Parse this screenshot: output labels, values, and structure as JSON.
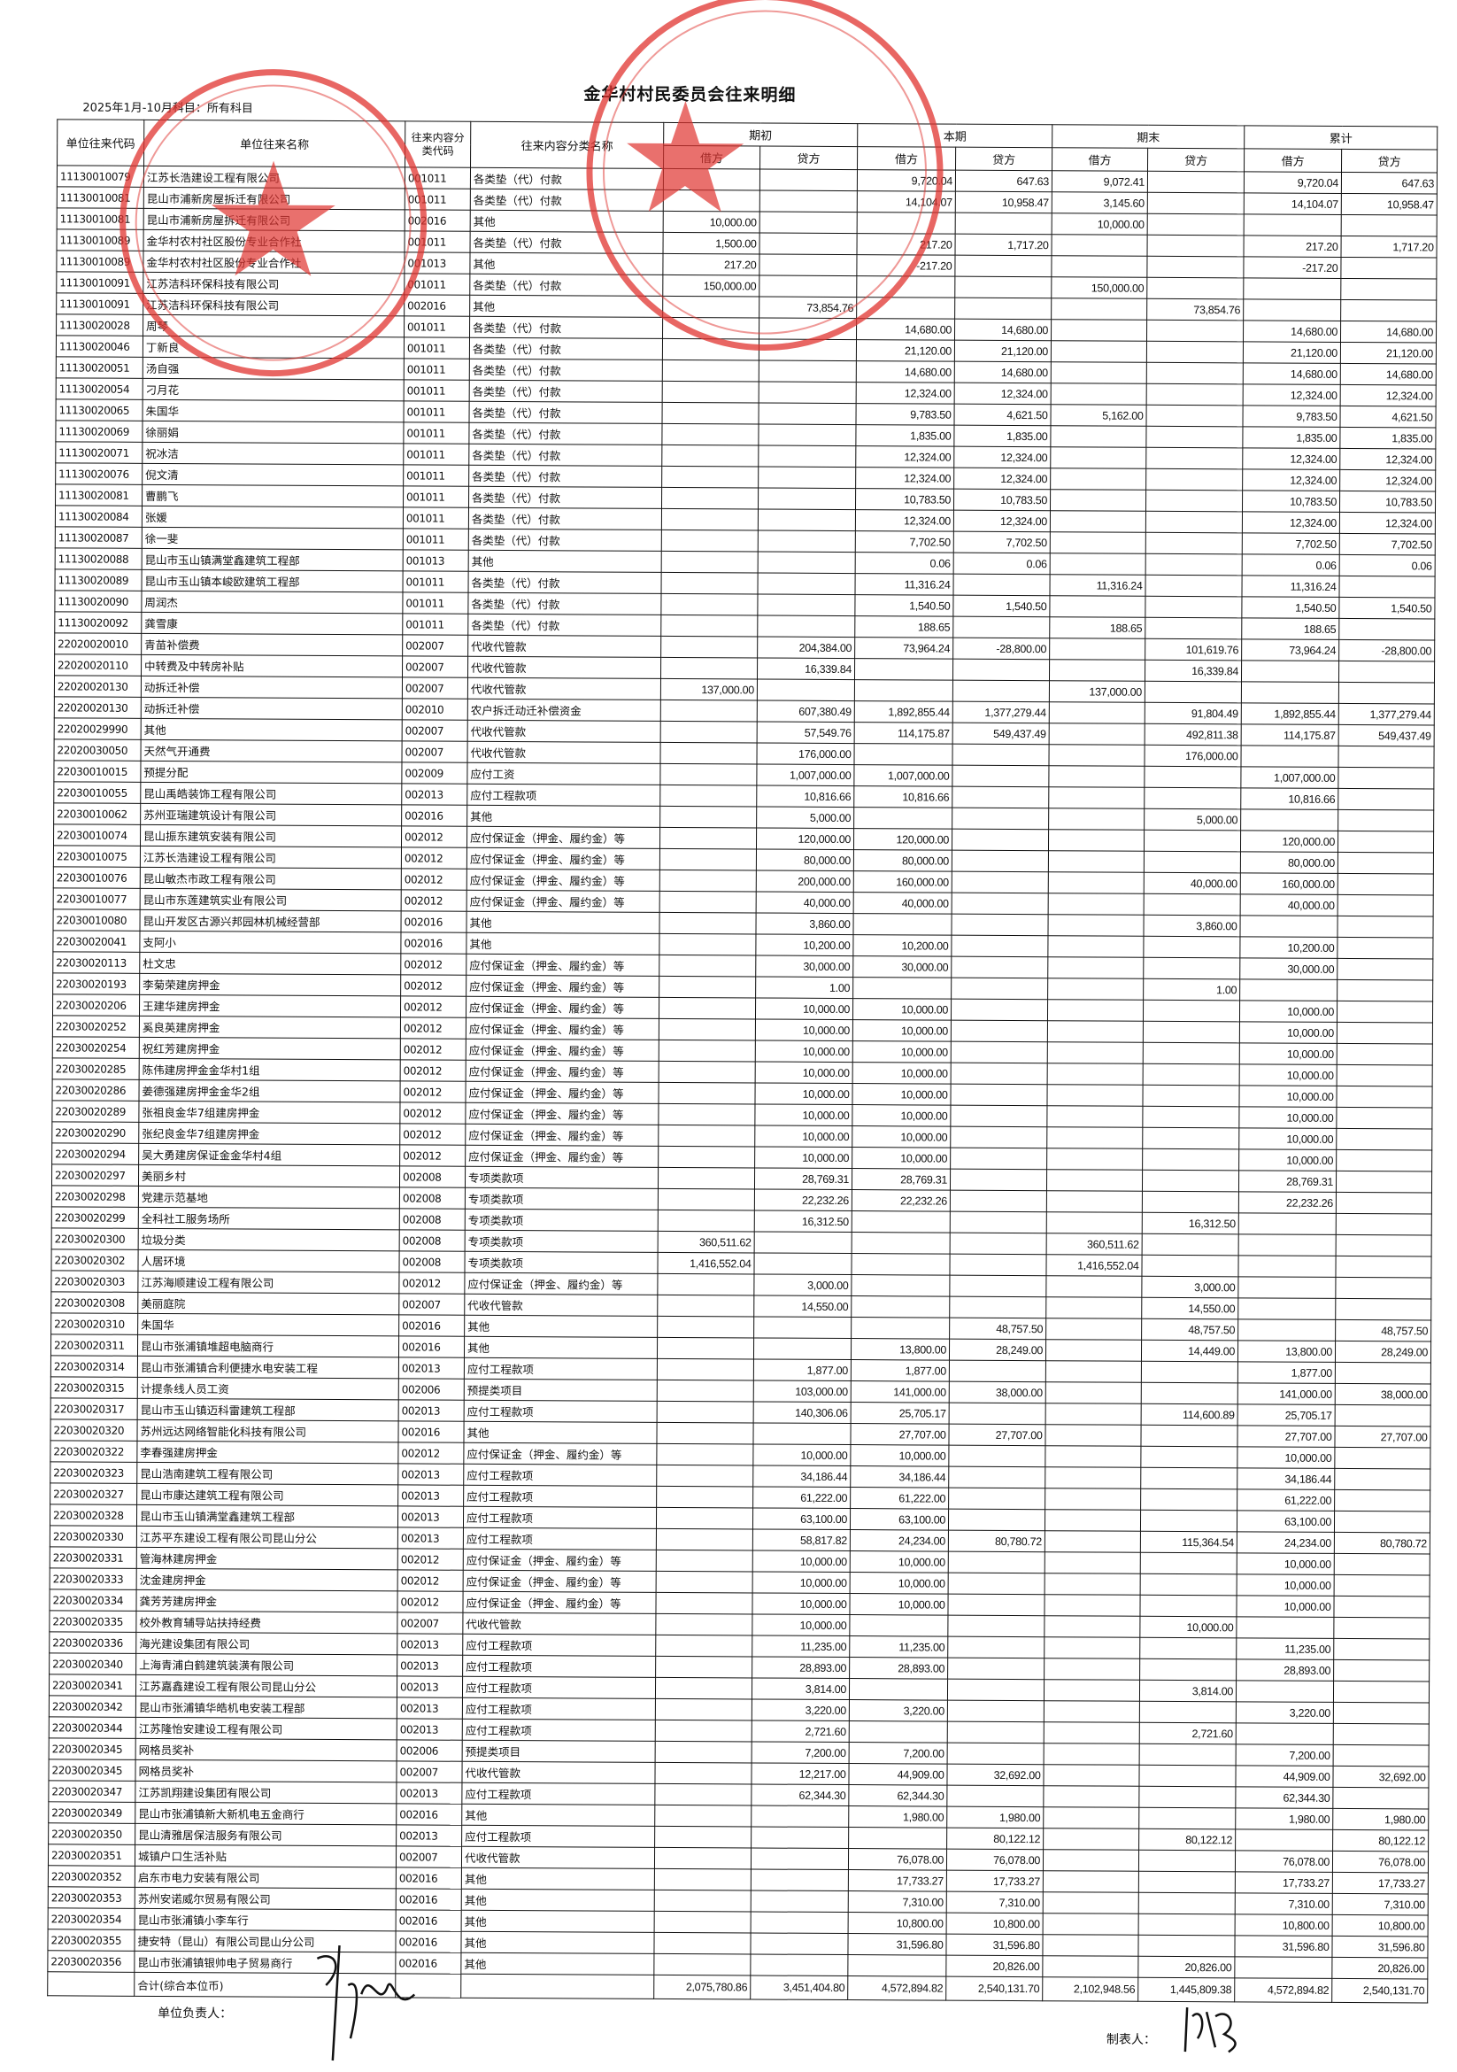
{
  "document": {
    "title": "金华村村民委员会往来明细",
    "period_line": "2025年1月-10月科目：所有科目",
    "stamp_color": "#e0332f"
  },
  "table": {
    "headers": {
      "code": "单位往来代码",
      "name": "单位往来名称",
      "class_code": "往来内容分类代码",
      "class_name": "往来内容分类名称",
      "groups": [
        "期初",
        "本期",
        "期末",
        "累计"
      ],
      "debit": "借方",
      "credit": "贷方"
    },
    "rows": [
      [
        "11130010079",
        "江苏长浩建设工程有限公司",
        "001011",
        "各类垫（代）付款",
        "",
        "",
        "9,720.04",
        "647.63",
        "9,072.41",
        "",
        "9,720.04",
        "647.63"
      ],
      [
        "11130010081",
        "昆山市浦新房屋拆迁有限公司",
        "001011",
        "各类垫（代）付款",
        "",
        "",
        "14,104.07",
        "10,958.47",
        "3,145.60",
        "",
        "14,104.07",
        "10,958.47"
      ],
      [
        "11130010081",
        "昆山市浦新房屋拆迁有限公司",
        "002016",
        "其他",
        "10,000.00",
        "",
        "",
        "",
        "10,000.00",
        "",
        "",
        ""
      ],
      [
        "11130010089",
        "金华村农村社区股份专业合作社",
        "001011",
        "各类垫（代）付款",
        "1,500.00",
        "",
        "217.20",
        "1,717.20",
        "",
        "",
        "217.20",
        "1,717.20"
      ],
      [
        "11130010089",
        "金华村农村社区股份专业合作社",
        "001013",
        "其他",
        "217.20",
        "",
        "-217.20",
        "",
        "",
        "",
        "-217.20",
        ""
      ],
      [
        "11130010091",
        "江苏洁科环保科技有限公司",
        "001011",
        "各类垫（代）付款",
        "150,000.00",
        "",
        "",
        "",
        "150,000.00",
        "",
        "",
        ""
      ],
      [
        "11130010091",
        "江苏洁科环保科技有限公司",
        "002016",
        "其他",
        "",
        "73,854.76",
        "",
        "",
        "",
        "73,854.76",
        "",
        ""
      ],
      [
        "11130020028",
        "周琴",
        "001011",
        "各类垫（代）付款",
        "",
        "",
        "14,680.00",
        "14,680.00",
        "",
        "",
        "14,680.00",
        "14,680.00"
      ],
      [
        "11130020046",
        "丁新良",
        "001011",
        "各类垫（代）付款",
        "",
        "",
        "21,120.00",
        "21,120.00",
        "",
        "",
        "21,120.00",
        "21,120.00"
      ],
      [
        "11130020051",
        "汤自强",
        "001011",
        "各类垫（代）付款",
        "",
        "",
        "14,680.00",
        "14,680.00",
        "",
        "",
        "14,680.00",
        "14,680.00"
      ],
      [
        "11130020054",
        "刁月花",
        "001011",
        "各类垫（代）付款",
        "",
        "",
        "12,324.00",
        "12,324.00",
        "",
        "",
        "12,324.00",
        "12,324.00"
      ],
      [
        "11130020065",
        "朱国华",
        "001011",
        "各类垫（代）付款",
        "",
        "",
        "9,783.50",
        "4,621.50",
        "5,162.00",
        "",
        "9,783.50",
        "4,621.50"
      ],
      [
        "11130020069",
        "徐丽娟",
        "001011",
        "各类垫（代）付款",
        "",
        "",
        "1,835.00",
        "1,835.00",
        "",
        "",
        "1,835.00",
        "1,835.00"
      ],
      [
        "11130020071",
        "祝冰洁",
        "001011",
        "各类垫（代）付款",
        "",
        "",
        "12,324.00",
        "12,324.00",
        "",
        "",
        "12,324.00",
        "12,324.00"
      ],
      [
        "11130020076",
        "倪文清",
        "001011",
        "各类垫（代）付款",
        "",
        "",
        "12,324.00",
        "12,324.00",
        "",
        "",
        "12,324.00",
        "12,324.00"
      ],
      [
        "11130020081",
        "曹鹏飞",
        "001011",
        "各类垫（代）付款",
        "",
        "",
        "10,783.50",
        "10,783.50",
        "",
        "",
        "10,783.50",
        "10,783.50"
      ],
      [
        "11130020084",
        "张媛",
        "001011",
        "各类垫（代）付款",
        "",
        "",
        "12,324.00",
        "12,324.00",
        "",
        "",
        "12,324.00",
        "12,324.00"
      ],
      [
        "11130020087",
        "徐一斐",
        "001011",
        "各类垫（代）付款",
        "",
        "",
        "7,702.50",
        "7,702.50",
        "",
        "",
        "7,702.50",
        "7,702.50"
      ],
      [
        "11130020088",
        "昆山市玉山镇满堂鑫建筑工程部",
        "001013",
        "其他",
        "",
        "",
        "0.06",
        "0.06",
        "",
        "",
        "0.06",
        "0.06"
      ],
      [
        "11130020089",
        "昆山市玉山镇本峻欧建筑工程部",
        "001011",
        "各类垫（代）付款",
        "",
        "",
        "11,316.24",
        "",
        "11,316.24",
        "",
        "11,316.24",
        ""
      ],
      [
        "11130020090",
        "周润杰",
        "001011",
        "各类垫（代）付款",
        "",
        "",
        "1,540.50",
        "1,540.50",
        "",
        "",
        "1,540.50",
        "1,540.50"
      ],
      [
        "11130020092",
        "龚雪康",
        "001011",
        "各类垫（代）付款",
        "",
        "",
        "188.65",
        "",
        "188.65",
        "",
        "188.65",
        ""
      ],
      [
        "22020020010",
        "青苗补偿费",
        "002007",
        "代收代管款",
        "",
        "204,384.00",
        "73,964.24",
        "-28,800.00",
        "",
        "101,619.76",
        "73,964.24",
        "-28,800.00"
      ],
      [
        "22020020110",
        "中转费及中转房补贴",
        "002007",
        "代收代管款",
        "",
        "16,339.84",
        "",
        "",
        "",
        "16,339.84",
        "",
        ""
      ],
      [
        "22020020130",
        "动拆迁补偿",
        "002007",
        "代收代管款",
        "137,000.00",
        "",
        "",
        "",
        "137,000.00",
        "",
        "",
        ""
      ],
      [
        "22020020130",
        "动拆迁补偿",
        "002010",
        "农户拆迁动迁补偿资金",
        "",
        "607,380.49",
        "1,892,855.44",
        "1,377,279.44",
        "",
        "91,804.49",
        "1,892,855.44",
        "1,377,279.44"
      ],
      [
        "22020029990",
        "其他",
        "002007",
        "代收代管款",
        "",
        "57,549.76",
        "114,175.87",
        "549,437.49",
        "",
        "492,811.38",
        "114,175.87",
        "549,437.49"
      ],
      [
        "22020030050",
        "天然气开通费",
        "002007",
        "代收代管款",
        "",
        "176,000.00",
        "",
        "",
        "",
        "176,000.00",
        "",
        ""
      ],
      [
        "22030010015",
        "预提分配",
        "002009",
        "应付工资",
        "",
        "1,007,000.00",
        "1,007,000.00",
        "",
        "",
        "",
        "1,007,000.00",
        ""
      ],
      [
        "22030010055",
        "昆山禹皓装饰工程有限公司",
        "002013",
        "应付工程款项",
        "",
        "10,816.66",
        "10,816.66",
        "",
        "",
        "",
        "10,816.66",
        ""
      ],
      [
        "22030010062",
        "苏州亚瑞建筑设计有限公司",
        "002016",
        "其他",
        "",
        "5,000.00",
        "",
        "",
        "",
        "5,000.00",
        "",
        ""
      ],
      [
        "22030010074",
        "昆山振东建筑安装有限公司",
        "002012",
        "应付保证金（押金、履约金）等",
        "",
        "120,000.00",
        "120,000.00",
        "",
        "",
        "",
        "120,000.00",
        ""
      ],
      [
        "22030010075",
        "江苏长浩建设工程有限公司",
        "002012",
        "应付保证金（押金、履约金）等",
        "",
        "80,000.00",
        "80,000.00",
        "",
        "",
        "",
        "80,000.00",
        ""
      ],
      [
        "22030010076",
        "昆山敏杰市政工程有限公司",
        "002012",
        "应付保证金（押金、履约金）等",
        "",
        "200,000.00",
        "160,000.00",
        "",
        "",
        "40,000.00",
        "160,000.00",
        ""
      ],
      [
        "22030010077",
        "昆山市东莲建筑实业有限公司",
        "002012",
        "应付保证金（押金、履约金）等",
        "",
        "40,000.00",
        "40,000.00",
        "",
        "",
        "",
        "40,000.00",
        ""
      ],
      [
        "22030010080",
        "昆山开发区古源兴邦园林机械经营部",
        "002016",
        "其他",
        "",
        "3,860.00",
        "",
        "",
        "",
        "3,860.00",
        "",
        ""
      ],
      [
        "22030020041",
        "支阿小",
        "002016",
        "其他",
        "",
        "10,200.00",
        "10,200.00",
        "",
        "",
        "",
        "10,200.00",
        ""
      ],
      [
        "22030020113",
        "杜文忠",
        "002012",
        "应付保证金（押金、履约金）等",
        "",
        "30,000.00",
        "30,000.00",
        "",
        "",
        "",
        "30,000.00",
        ""
      ],
      [
        "22030020193",
        "李菊荣建房押金",
        "002012",
        "应付保证金（押金、履约金）等",
        "",
        "1.00",
        "",
        "",
        "",
        "1.00",
        "",
        ""
      ],
      [
        "22030020206",
        "王建华建房押金",
        "002012",
        "应付保证金（押金、履约金）等",
        "",
        "10,000.00",
        "10,000.00",
        "",
        "",
        "",
        "10,000.00",
        ""
      ],
      [
        "22030020252",
        "奚良英建房押金",
        "002012",
        "应付保证金（押金、履约金）等",
        "",
        "10,000.00",
        "10,000.00",
        "",
        "",
        "",
        "10,000.00",
        ""
      ],
      [
        "22030020254",
        "祝红芳建房押金",
        "002012",
        "应付保证金（押金、履约金）等",
        "",
        "10,000.00",
        "10,000.00",
        "",
        "",
        "",
        "10,000.00",
        ""
      ],
      [
        "22030020285",
        "陈伟建房押金金华村1组",
        "002012",
        "应付保证金（押金、履约金）等",
        "",
        "10,000.00",
        "10,000.00",
        "",
        "",
        "",
        "10,000.00",
        ""
      ],
      [
        "22030020286",
        "姜德强建房押金金华2组",
        "002012",
        "应付保证金（押金、履约金）等",
        "",
        "10,000.00",
        "10,000.00",
        "",
        "",
        "",
        "10,000.00",
        ""
      ],
      [
        "22030020289",
        "张祖良金华7组建房押金",
        "002012",
        "应付保证金（押金、履约金）等",
        "",
        "10,000.00",
        "10,000.00",
        "",
        "",
        "",
        "10,000.00",
        ""
      ],
      [
        "22030020290",
        "张纪良金华7组建房押金",
        "002012",
        "应付保证金（押金、履约金）等",
        "",
        "10,000.00",
        "10,000.00",
        "",
        "",
        "",
        "10,000.00",
        ""
      ],
      [
        "22030020294",
        "吴大勇建房保证金金华村4组",
        "002012",
        "应付保证金（押金、履约金）等",
        "",
        "10,000.00",
        "10,000.00",
        "",
        "",
        "",
        "10,000.00",
        ""
      ],
      [
        "22030020297",
        "美丽乡村",
        "002008",
        "专项类款项",
        "",
        "28,769.31",
        "28,769.31",
        "",
        "",
        "",
        "28,769.31",
        ""
      ],
      [
        "22030020298",
        "党建示范基地",
        "002008",
        "专项类款项",
        "",
        "22,232.26",
        "22,232.26",
        "",
        "",
        "",
        "22,232.26",
        ""
      ],
      [
        "22030020299",
        "全科社工服务场所",
        "002008",
        "专项类款项",
        "",
        "16,312.50",
        "",
        "",
        "",
        "16,312.50",
        "",
        ""
      ],
      [
        "22030020300",
        "垃圾分类",
        "002008",
        "专项类款项",
        "360,511.62",
        "",
        "",
        "",
        "360,511.62",
        "",
        "",
        ""
      ],
      [
        "22030020302",
        "人居环境",
        "002008",
        "专项类款项",
        "1,416,552.04",
        "",
        "",
        "",
        "1,416,552.04",
        "",
        "",
        ""
      ],
      [
        "22030020303",
        "江苏海顺建设工程有限公司",
        "002012",
        "应付保证金（押金、履约金）等",
        "",
        "3,000.00",
        "",
        "",
        "",
        "3,000.00",
        "",
        ""
      ],
      [
        "22030020308",
        "美丽庭院",
        "002007",
        "代收代管款",
        "",
        "14,550.00",
        "",
        "",
        "",
        "14,550.00",
        "",
        ""
      ],
      [
        "22030020310",
        "朱国华",
        "002016",
        "其他",
        "",
        "",
        "",
        "48,757.50",
        "",
        "48,757.50",
        "",
        "48,757.50"
      ],
      [
        "22030020311",
        "昆山市张浦镇堆超电脑商行",
        "002016",
        "其他",
        "",
        "",
        "13,800.00",
        "28,249.00",
        "",
        "14,449.00",
        "13,800.00",
        "28,249.00"
      ],
      [
        "22030020314",
        "昆山市张浦镇合利便捷水电安装工程",
        "002013",
        "应付工程款项",
        "",
        "1,877.00",
        "1,877.00",
        "",
        "",
        "",
        "1,877.00",
        ""
      ],
      [
        "22030020315",
        "计提条线人员工资",
        "002006",
        "预提类项目",
        "",
        "103,000.00",
        "141,000.00",
        "38,000.00",
        "",
        "",
        "141,000.00",
        "38,000.00"
      ],
      [
        "22030020317",
        "昆山市玉山镇迈科雷建筑工程部",
        "002013",
        "应付工程款项",
        "",
        "140,306.06",
        "25,705.17",
        "",
        "",
        "114,600.89",
        "25,705.17",
        ""
      ],
      [
        "22030020320",
        "苏州远达网络智能化科技有限公司",
        "002016",
        "其他",
        "",
        "",
        "27,707.00",
        "27,707.00",
        "",
        "",
        "27,707.00",
        "27,707.00"
      ],
      [
        "22030020322",
        "李春强建房押金",
        "002012",
        "应付保证金（押金、履约金）等",
        "",
        "10,000.00",
        "10,000.00",
        "",
        "",
        "",
        "10,000.00",
        ""
      ],
      [
        "22030020323",
        "昆山浩南建筑工程有限公司",
        "002013",
        "应付工程款项",
        "",
        "34,186.44",
        "34,186.44",
        "",
        "",
        "",
        "34,186.44",
        ""
      ],
      [
        "22030020327",
        "昆山市康达建筑工程有限公司",
        "002013",
        "应付工程款项",
        "",
        "61,222.00",
        "61,222.00",
        "",
        "",
        "",
        "61,222.00",
        ""
      ],
      [
        "22030020328",
        "昆山市玉山镇满堂鑫建筑工程部",
        "002013",
        "应付工程款项",
        "",
        "63,100.00",
        "63,100.00",
        "",
        "",
        "",
        "63,100.00",
        ""
      ],
      [
        "22030020330",
        "江苏平东建设工程有限公司昆山分公",
        "002013",
        "应付工程款项",
        "",
        "58,817.82",
        "24,234.00",
        "80,780.72",
        "",
        "115,364.54",
        "24,234.00",
        "80,780.72"
      ],
      [
        "22030020331",
        "管海林建房押金",
        "002012",
        "应付保证金（押金、履约金）等",
        "",
        "10,000.00",
        "10,000.00",
        "",
        "",
        "",
        "10,000.00",
        ""
      ],
      [
        "22030020333",
        "沈金建房押金",
        "002012",
        "应付保证金（押金、履约金）等",
        "",
        "10,000.00",
        "10,000.00",
        "",
        "",
        "",
        "10,000.00",
        ""
      ],
      [
        "22030020334",
        "龚芳芳建房押金",
        "002012",
        "应付保证金（押金、履约金）等",
        "",
        "10,000.00",
        "10,000.00",
        "",
        "",
        "",
        "10,000.00",
        ""
      ],
      [
        "22030020335",
        "校外教育辅导站扶持经费",
        "002007",
        "代收代管款",
        "",
        "10,000.00",
        "",
        "",
        "",
        "10,000.00",
        "",
        ""
      ],
      [
        "22030020336",
        "海光建设集团有限公司",
        "002013",
        "应付工程款项",
        "",
        "11,235.00",
        "11,235.00",
        "",
        "",
        "",
        "11,235.00",
        ""
      ],
      [
        "22030020340",
        "上海青浦白鹤建筑装潢有限公司",
        "002013",
        "应付工程款项",
        "",
        "28,893.00",
        "28,893.00",
        "",
        "",
        "",
        "28,893.00",
        ""
      ],
      [
        "22030020341",
        "江苏嘉鑫建设工程有限公司昆山分公",
        "002013",
        "应付工程款项",
        "",
        "3,814.00",
        "",
        "",
        "",
        "3,814.00",
        "",
        ""
      ],
      [
        "22030020342",
        "昆山市张浦镇华皓机电安装工程部",
        "002013",
        "应付工程款项",
        "",
        "3,220.00",
        "3,220.00",
        "",
        "",
        "",
        "3,220.00",
        ""
      ],
      [
        "22030020344",
        "江苏隆怡安建设工程有限公司",
        "002013",
        "应付工程款项",
        "",
        "2,721.60",
        "",
        "",
        "",
        "2,721.60",
        "",
        ""
      ],
      [
        "22030020345",
        "网格员奖补",
        "002006",
        "预提类项目",
        "",
        "7,200.00",
        "7,200.00",
        "",
        "",
        "",
        "7,200.00",
        ""
      ],
      [
        "22030020345",
        "网格员奖补",
        "002007",
        "代收代管款",
        "",
        "12,217.00",
        "44,909.00",
        "32,692.00",
        "",
        "",
        "44,909.00",
        "32,692.00"
      ],
      [
        "22030020347",
        "江苏凯翔建设集团有限公司",
        "002013",
        "应付工程款项",
        "",
        "62,344.30",
        "62,344.30",
        "",
        "",
        "",
        "62,344.30",
        ""
      ],
      [
        "22030020349",
        "昆山市张浦镇新大新机电五金商行",
        "002016",
        "其他",
        "",
        "",
        "1,980.00",
        "1,980.00",
        "",
        "",
        "1,980.00",
        "1,980.00"
      ],
      [
        "22030020350",
        "昆山清雅居保洁服务有限公司",
        "002013",
        "应付工程款项",
        "",
        "",
        "",
        "80,122.12",
        "",
        "80,122.12",
        "",
        "80,122.12"
      ],
      [
        "22030020351",
        "城镇户口生活补贴",
        "002007",
        "代收代管款",
        "",
        "",
        "76,078.00",
        "76,078.00",
        "",
        "",
        "76,078.00",
        "76,078.00"
      ],
      [
        "22030020352",
        "启东市电力安装有限公司",
        "002016",
        "其他",
        "",
        "",
        "17,733.27",
        "17,733.27",
        "",
        "",
        "17,733.27",
        "17,733.27"
      ],
      [
        "22030020353",
        "苏州安诺威尔贸易有限公司",
        "002016",
        "其他",
        "",
        "",
        "7,310.00",
        "7,310.00",
        "",
        "",
        "7,310.00",
        "7,310.00"
      ],
      [
        "22030020354",
        "昆山市张浦镇小李车行",
        "002016",
        "其他",
        "",
        "",
        "10,800.00",
        "10,800.00",
        "",
        "",
        "10,800.00",
        "10,800.00"
      ],
      [
        "22030020355",
        "捷安特（昆山）有限公司昆山分公司",
        "002016",
        "其他",
        "",
        "",
        "31,596.80",
        "31,596.80",
        "",
        "",
        "31,596.80",
        "31,596.80"
      ],
      [
        "22030020356",
        "昆山市张浦镇银帅电子贸易商行",
        "002016",
        "其他",
        "",
        "",
        "",
        "20,826.00",
        "",
        "20,826.00",
        "",
        "20,826.00"
      ]
    ],
    "total": {
      "label": "合计(综合本位币)",
      "values": [
        "2,075,780.86",
        "3,451,404.80",
        "4,572,894.82",
        "2,540,131.70",
        "2,102,948.56",
        "1,445,809.38",
        "4,572,894.82",
        "2,540,131.70"
      ]
    }
  },
  "footer": {
    "responsible_label": "单位负责人：",
    "preparer_label": "制表人："
  }
}
